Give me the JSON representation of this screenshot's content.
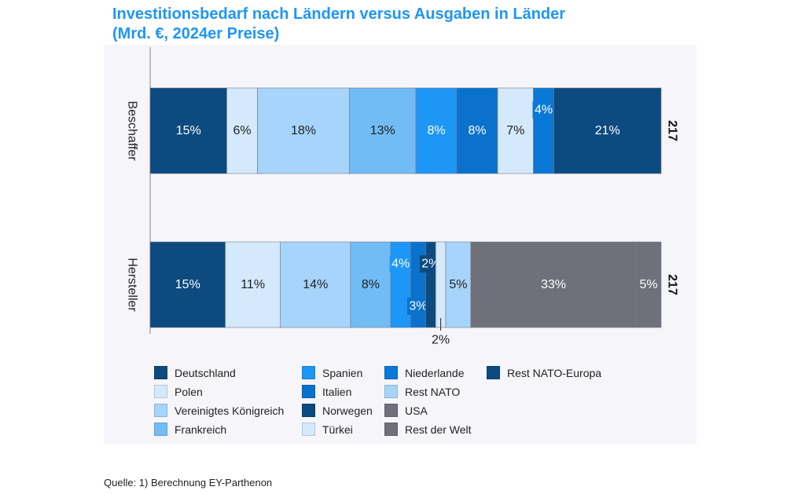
{
  "title_line1": "Investitionsbedarf nach Ländern versus Ausgaben in Länder",
  "title_line2": "(Mrd. €, 2024er Preise)",
  "source": "Quelle: 1) Berechnung EY-Parthenon",
  "chart_data": {
    "type": "bar",
    "orientation": "horizontal",
    "stacked": "percent",
    "title": "Investitionsbedarf nach Ländern versus Ausgaben in Länder (Mrd. €, 2024er Preise)",
    "categories": [
      "Beschaffer",
      "Hersteller"
    ],
    "totals": [
      "217",
      "217"
    ],
    "legend_position": "bottom",
    "grid": false,
    "countries": [
      {
        "name": "Deutschland",
        "color": "#0d4a7f"
      },
      {
        "name": "Polen",
        "color": "#d4e9fb"
      },
      {
        "name": "Vereinigtes Königreich",
        "color": "#a6d4fa"
      },
      {
        "name": "Frankreich",
        "color": "#72bcf6"
      },
      {
        "name": "Spanien",
        "color": "#1e96f5"
      },
      {
        "name": "Italien",
        "color": "#0a72cc"
      },
      {
        "name": "Norwegen",
        "color": "#0d4a7f"
      },
      {
        "name": "Türkei",
        "color": "#d4e9fb"
      },
      {
        "name": "Niederlande",
        "color": "#0a78d6"
      },
      {
        "name": "Rest NATO",
        "color": "#a6d4fa"
      },
      {
        "name": "USA",
        "color": "#6f7079"
      },
      {
        "name": "Rest der Welt",
        "color": "#6f7079"
      },
      {
        "name": "Rest NATO-Europa",
        "color": "#0d4a7f"
      }
    ],
    "series": [
      {
        "category": "Beschaffer",
        "segments": [
          {
            "country": "Deutschland",
            "value": 15
          },
          {
            "country": "Polen",
            "value": 6
          },
          {
            "country": "Vereinigtes Königreich",
            "value": 18
          },
          {
            "country": "Frankreich",
            "value": 13
          },
          {
            "country": "Spanien",
            "value": 8
          },
          {
            "country": "Italien",
            "value": 8
          },
          {
            "country": "Türkei",
            "value": 7
          },
          {
            "country": "Niederlande",
            "value": 4
          },
          {
            "country": "Rest NATO-Europa",
            "value": 21
          }
        ]
      },
      {
        "category": "Hersteller",
        "segments": [
          {
            "country": "Deutschland",
            "value": 15
          },
          {
            "country": "Polen",
            "value": 11
          },
          {
            "country": "Vereinigtes Königreich",
            "value": 14
          },
          {
            "country": "Frankreich",
            "value": 8
          },
          {
            "country": "Spanien",
            "value": 4
          },
          {
            "country": "Italien",
            "value": 3
          },
          {
            "country": "Norwegen",
            "value": 2
          },
          {
            "country": "Türkei",
            "value": 2
          },
          {
            "country": "Rest NATO",
            "value": 5
          },
          {
            "country": "USA",
            "value": 33
          },
          {
            "country": "Rest der Welt",
            "value": 5
          }
        ]
      }
    ]
  }
}
